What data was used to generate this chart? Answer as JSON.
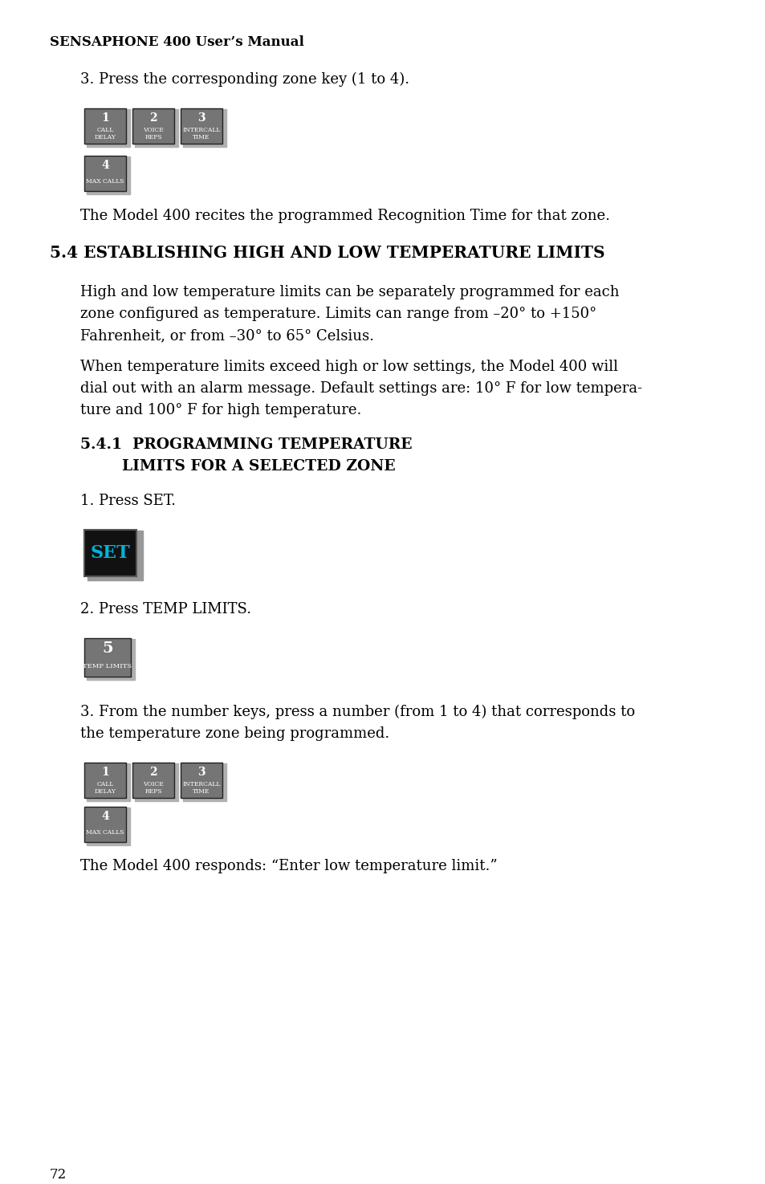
{
  "page_number": "72",
  "header": "SENSAPHONE 400 User’s Manual",
  "bg_color": "#ffffff",
  "text_color": "#000000",
  "section_title": "5.4 ESTABLISHING HIGH AND LOW TEMPERATURE LIMITS",
  "sub_line1": "5.4.1  PROGRAMMING TEMPERATURE",
  "sub_line2": "        LIMITS FOR A SELECTED ZONE",
  "para_intro": "3. Press the corresponding zone key (1 to 4).",
  "para_recognition": "The Model 400 recites the programmed Recognition Time for that zone.",
  "para1_l1": "High and low temperature limits can be separately programmed for each",
  "para1_l2": "zone configured as temperature. Limits can range from –20° to +150°",
  "para1_l3": "Fahrenheit, or from –30° to 65° Celsius.",
  "para2_l1": "When temperature limits exceed high or low settings, the Model 400 will",
  "para2_l2": "dial out with an alarm message. Default settings are: 10° F for low tempera-",
  "para2_l3": "ture and 100° F for high temperature.",
  "step1_text": "1. Press SET.",
  "step2_text": "2. Press TEMP LIMITS.",
  "step3_l1": "3. From the number keys, press a number (from 1 to 4) that corresponds to",
  "step3_l2": "the temperature zone being programmed.",
  "step3_response": "The Model 400 responds: “Enter low temperature limit.”",
  "keys_row1": [
    {
      "num": "1",
      "label": "CALL\nDELAY"
    },
    {
      "num": "2",
      "label": "VOICE\nREPS"
    },
    {
      "num": "3",
      "label": "INTERCALL\nTIME"
    }
  ],
  "keys_row2_num": "4",
  "keys_row2_label": "MAX CALLS",
  "key_bg": "#757575",
  "key_text": "#ffffff",
  "set_key_bg": "#111111",
  "set_key_text": "#00b4d8",
  "temp_key_bg": "#757575",
  "temp_key_text": "#ffffff",
  "key_shadow": "#999999"
}
